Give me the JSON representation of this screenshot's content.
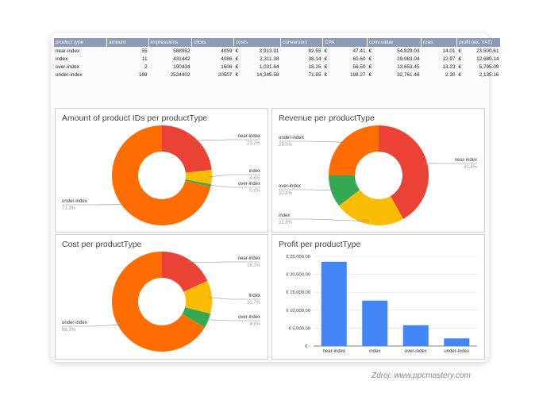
{
  "table": {
    "headers": [
      "product type",
      "amount",
      "impressions",
      "clicks",
      "costs",
      "conversion",
      "CPA",
      "conv.value",
      "roas",
      "profit (ex. VAT)"
    ],
    "currency_symbol": "€",
    "rows": [
      {
        "type": "near-index",
        "amount": "55",
        "impressions": "588952",
        "clicks": "4059",
        "costs": "3,913.91",
        "conversion": "82.55",
        "cpa": "47.41",
        "conv_value": "54,829.03",
        "roas": "14.01",
        "profit": "23,500.61"
      },
      {
        "type": "index",
        "amount": "11",
        "impressions": "431442",
        "clicks": "4086",
        "costs": "2,311.38",
        "conversion": "38.14",
        "cpa": "60.60",
        "conv_value": "29,983.04",
        "roas": "12.97",
        "profit": "12,680.14"
      },
      {
        "type": "over-index",
        "amount": "2",
        "impressions": "190434",
        "clicks": "1606",
        "costs": "1,031.64",
        "conversion": "18.26",
        "cpa": "56.50",
        "conv_value": "13,653.45",
        "roas": "13.23",
        "profit": "5,795.09"
      },
      {
        "type": "under-index",
        "amount": "169",
        "impressions": "2524402",
        "clicks": "20507",
        "costs": "14,245.58",
        "conversion": "71.85",
        "cpa": "198.27",
        "conv_value": "32,761.48",
        "roas": "2.30",
        "profit": "2,135.16"
      }
    ]
  },
  "colors": {
    "near-index": "#ea4335",
    "index": "#fbbc04",
    "over-index": "#34a853",
    "under-index": "#ff6d01",
    "bar": "#4285f4"
  },
  "chart_data": [
    {
      "type": "pie",
      "title": "Amount of product IDs per productType",
      "slices": [
        {
          "name": "near-index",
          "value": 23.2,
          "label": "23.2%"
        },
        {
          "name": "index",
          "value": 4.6,
          "label": "4.6%"
        },
        {
          "name": "over-index",
          "value": 0.8,
          "label": "0.8%"
        },
        {
          "name": "under-index",
          "value": 71.3,
          "label": "71.3%"
        }
      ]
    },
    {
      "type": "pie",
      "title": "Revenue per productType",
      "slices": [
        {
          "name": "near-index",
          "value": 41.8,
          "label": "41.8%"
        },
        {
          "name": "index",
          "value": 22.8,
          "label": "22.8%"
        },
        {
          "name": "over-index",
          "value": 10.4,
          "label": "10.4%"
        },
        {
          "name": "under-index",
          "value": 25.0,
          "label": "25.0%"
        }
      ]
    },
    {
      "type": "pie",
      "title": "Cost per productType",
      "slices": [
        {
          "name": "near-index",
          "value": 18.2,
          "label": "18.2%"
        },
        {
          "name": "index",
          "value": 10.7,
          "label": "10.7%"
        },
        {
          "name": "over-index",
          "value": 4.8,
          "label": "4.8%"
        },
        {
          "name": "under-index",
          "value": 66.3,
          "label": "66.3%"
        }
      ]
    },
    {
      "type": "bar",
      "title": "Profit per productType",
      "categories": [
        "near-index",
        "index",
        "over-index",
        "under-index"
      ],
      "values": [
        23500.61,
        12680.14,
        5795.09,
        2135.16
      ],
      "ylim": [
        0,
        25000
      ],
      "yticks": [
        0,
        5000,
        10000,
        15000,
        20000,
        25000
      ],
      "ytick_labels": [
        "€ -",
        "€ 5,000.00",
        "€ 10,000.00",
        "€ 15,000.00",
        "€ 20,000.00",
        "€ 25,000.00"
      ],
      "grid": true
    }
  ],
  "credit": "Zdroj: www.ppcmastery.com"
}
